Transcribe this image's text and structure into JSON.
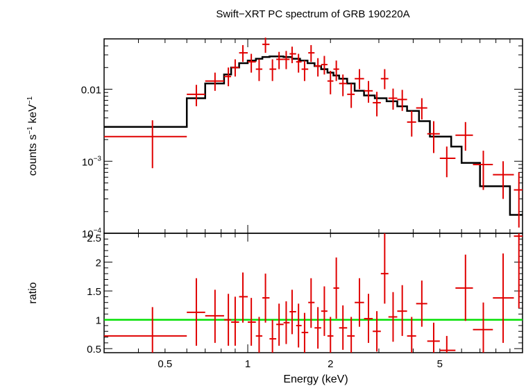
{
  "chart_data": {
    "type": "line",
    "title": "Swift−XRT PC spectrum of GRB 190220A",
    "xlabel": "Energy (keV)",
    "x_scale": "log",
    "xlim": [
      0.3,
      10
    ],
    "x_ticks": [
      {
        "value": 0.5,
        "label": "0.5"
      },
      {
        "value": 1,
        "label": "1"
      },
      {
        "value": 2,
        "label": "2"
      },
      {
        "value": 5,
        "label": "5"
      }
    ],
    "colors": {
      "data": "#e00000",
      "model": "#000000",
      "unity": "#00e000"
    },
    "top_panel": {
      "ylabel_parts": {
        "a": "counts s",
        "b": "−1",
        "c": " keV",
        "d": "−1"
      },
      "y_scale": "log",
      "ylim": [
        0.0001,
        0.05
      ],
      "y_ticks": [
        {
          "value": 0.01,
          "label": "0.01"
        },
        {
          "value": 0.001,
          "base": "10",
          "exp": "−3"
        },
        {
          "value": 0.0001,
          "base": "10",
          "exp": "−4"
        }
      ],
      "model_steps": [
        [
          0.3,
          0.6,
          0.003
        ],
        [
          0.6,
          0.7,
          0.0075
        ],
        [
          0.7,
          0.82,
          0.012
        ],
        [
          0.82,
          0.87,
          0.016
        ],
        [
          0.87,
          0.93,
          0.02
        ],
        [
          0.93,
          1.0,
          0.023
        ],
        [
          1.0,
          1.07,
          0.025
        ],
        [
          1.07,
          1.13,
          0.0265
        ],
        [
          1.13,
          1.2,
          0.028
        ],
        [
          1.2,
          1.35,
          0.0285
        ],
        [
          1.35,
          1.45,
          0.028
        ],
        [
          1.45,
          1.55,
          0.0265
        ],
        [
          1.55,
          1.65,
          0.025
        ],
        [
          1.65,
          1.75,
          0.023
        ],
        [
          1.75,
          1.85,
          0.021
        ],
        [
          1.85,
          1.95,
          0.019
        ],
        [
          1.95,
          2.05,
          0.017
        ],
        [
          2.05,
          2.15,
          0.0155
        ],
        [
          2.15,
          2.3,
          0.014
        ],
        [
          2.3,
          2.45,
          0.012
        ],
        [
          2.45,
          2.65,
          0.0095
        ],
        [
          2.65,
          2.9,
          0.0082
        ],
        [
          2.9,
          3.2,
          0.0075
        ],
        [
          3.2,
          3.5,
          0.0068
        ],
        [
          3.5,
          3.8,
          0.0058
        ],
        [
          3.8,
          4.2,
          0.005
        ],
        [
          4.2,
          4.6,
          0.0036
        ],
        [
          4.6,
          5.5,
          0.0022
        ],
        [
          5.5,
          6.0,
          0.0016
        ],
        [
          6.0,
          7.0,
          0.00095
        ],
        [
          7.0,
          8.0,
          0.00045
        ],
        [
          8.0,
          9.0,
          0.00045
        ],
        [
          9.0,
          9.5,
          0.00018
        ],
        [
          9.5,
          10.0,
          0.00018
        ]
      ],
      "points": [
        [
          0.45,
          0.3,
          0.6,
          0.0022,
          0.0008,
          0.0037
        ],
        [
          0.65,
          0.6,
          0.7,
          0.0085,
          0.0058,
          0.0115
        ],
        [
          0.76,
          0.7,
          0.82,
          0.013,
          0.0095,
          0.017
        ],
        [
          0.85,
          0.82,
          0.87,
          0.015,
          0.011,
          0.02
        ],
        [
          0.9,
          0.87,
          0.93,
          0.02,
          0.015,
          0.026
        ],
        [
          0.96,
          0.93,
          1.0,
          0.032,
          0.024,
          0.041
        ],
        [
          1.03,
          1.0,
          1.07,
          0.024,
          0.017,
          0.031
        ],
        [
          1.1,
          1.07,
          1.13,
          0.019,
          0.013,
          0.026
        ],
        [
          1.16,
          1.13,
          1.2,
          0.042,
          0.032,
          0.052
        ],
        [
          1.23,
          1.2,
          1.27,
          0.019,
          0.013,
          0.026
        ],
        [
          1.3,
          1.27,
          1.35,
          0.026,
          0.019,
          0.033
        ],
        [
          1.38,
          1.35,
          1.42,
          0.026,
          0.019,
          0.034
        ],
        [
          1.45,
          1.42,
          1.5,
          0.031,
          0.023,
          0.039
        ],
        [
          1.53,
          1.5,
          1.57,
          0.024,
          0.017,
          0.031
        ],
        [
          1.61,
          1.57,
          1.66,
          0.019,
          0.013,
          0.025
        ],
        [
          1.7,
          1.66,
          1.75,
          0.032,
          0.024,
          0.041
        ],
        [
          1.8,
          1.75,
          1.85,
          0.021,
          0.015,
          0.027
        ],
        [
          1.9,
          1.85,
          1.95,
          0.022,
          0.016,
          0.029
        ],
        [
          2.0,
          1.95,
          2.05,
          0.013,
          0.0085,
          0.018
        ],
        [
          2.1,
          2.05,
          2.15,
          0.019,
          0.013,
          0.025
        ],
        [
          2.22,
          2.15,
          2.3,
          0.012,
          0.008,
          0.016
        ],
        [
          2.38,
          2.3,
          2.45,
          0.0085,
          0.0055,
          0.012
        ],
        [
          2.55,
          2.45,
          2.65,
          0.014,
          0.01,
          0.019
        ],
        [
          2.75,
          2.65,
          2.85,
          0.0095,
          0.0065,
          0.013
        ],
        [
          2.95,
          2.85,
          3.05,
          0.0065,
          0.0042,
          0.0092
        ],
        [
          3.15,
          3.05,
          3.25,
          0.014,
          0.01,
          0.019
        ],
        [
          3.38,
          3.25,
          3.5,
          0.0075,
          0.0052,
          0.0102
        ],
        [
          3.65,
          3.5,
          3.8,
          0.0072,
          0.005,
          0.0098
        ],
        [
          3.95,
          3.8,
          4.1,
          0.0035,
          0.0022,
          0.005
        ],
        [
          4.3,
          4.1,
          4.5,
          0.0055,
          0.0038,
          0.0075
        ],
        [
          4.75,
          4.5,
          5.0,
          0.0024,
          0.0013,
          0.0036
        ],
        [
          5.3,
          5.0,
          5.7,
          0.0011,
          0.0006,
          0.0016
        ],
        [
          6.2,
          5.7,
          6.6,
          0.0023,
          0.0014,
          0.0035
        ],
        [
          7.2,
          6.6,
          7.8,
          0.0009,
          0.0004,
          0.0014
        ],
        [
          8.5,
          7.8,
          9.3,
          0.00065,
          0.0003,
          0.001
        ],
        [
          9.7,
          9.3,
          10.0,
          0.0004,
          0.00012,
          0.0007
        ]
      ]
    },
    "bottom_panel": {
      "ylabel": "ratio",
      "ylim": [
        0.43,
        2.5
      ],
      "y_ticks": [
        {
          "value": 0.5,
          "label": "0.5"
        },
        {
          "value": 1,
          "label": "1"
        },
        {
          "value": 1.5,
          "label": "1.5"
        },
        {
          "value": 2,
          "label": "2"
        },
        {
          "value": 2.5,
          "label": "2.5"
        }
      ],
      "reference_line": 1,
      "points": [
        [
          0.45,
          0.3,
          0.6,
          0.72,
          0.25,
          1.22
        ],
        [
          0.65,
          0.6,
          0.7,
          1.13,
          0.55,
          1.72
        ],
        [
          0.76,
          0.7,
          0.82,
          1.07,
          0.6,
          1.52
        ],
        [
          0.85,
          0.82,
          0.87,
          1.0,
          0.55,
          1.45
        ],
        [
          0.9,
          0.87,
          0.93,
          0.96,
          0.55,
          1.4
        ],
        [
          0.96,
          0.93,
          1.0,
          1.4,
          0.95,
          1.82
        ],
        [
          1.03,
          1.0,
          1.07,
          0.96,
          0.55,
          1.38
        ],
        [
          1.1,
          1.07,
          1.13,
          0.72,
          0.38,
          1.05
        ],
        [
          1.16,
          1.13,
          1.2,
          1.38,
          0.95,
          1.8
        ],
        [
          1.23,
          1.2,
          1.27,
          0.67,
          0.35,
          1.0
        ],
        [
          1.3,
          1.27,
          1.35,
          0.92,
          0.55,
          1.28
        ],
        [
          1.38,
          1.35,
          1.42,
          0.95,
          0.58,
          1.32
        ],
        [
          1.45,
          1.42,
          1.5,
          1.14,
          0.75,
          1.52
        ],
        [
          1.53,
          1.5,
          1.57,
          0.9,
          0.52,
          1.28
        ],
        [
          1.61,
          1.57,
          1.66,
          0.78,
          0.42,
          1.12
        ],
        [
          1.7,
          1.66,
          1.75,
          1.3,
          0.86,
          1.72
        ],
        [
          1.8,
          1.75,
          1.85,
          0.86,
          0.5,
          1.22
        ],
        [
          1.9,
          1.85,
          1.95,
          1.15,
          0.72,
          1.58
        ],
        [
          2.0,
          1.95,
          2.05,
          0.72,
          0.38,
          1.05
        ],
        [
          2.1,
          2.05,
          2.15,
          1.55,
          1.02,
          2.08
        ],
        [
          2.22,
          2.15,
          2.3,
          0.86,
          0.48,
          1.25
        ],
        [
          2.38,
          2.3,
          2.45,
          0.72,
          0.38,
          1.05
        ],
        [
          2.55,
          2.45,
          2.65,
          1.3,
          0.88,
          1.72
        ],
        [
          2.75,
          2.65,
          2.85,
          1.02,
          0.6,
          1.45
        ],
        [
          2.95,
          2.85,
          3.05,
          0.8,
          0.45,
          1.15
        ],
        [
          3.15,
          3.05,
          3.25,
          1.8,
          1.28,
          2.5
        ],
        [
          3.38,
          3.25,
          3.5,
          1.05,
          0.62,
          1.48
        ],
        [
          3.65,
          3.5,
          3.8,
          1.15,
          0.72,
          1.6
        ],
        [
          3.95,
          3.8,
          4.1,
          0.72,
          0.38,
          1.05
        ],
        [
          4.3,
          4.1,
          4.5,
          1.28,
          0.88,
          1.68
        ],
        [
          4.75,
          4.5,
          5.0,
          0.63,
          0.3,
          0.95
        ],
        [
          5.3,
          5.0,
          5.7,
          0.47,
          0.3,
          0.72
        ],
        [
          6.2,
          5.7,
          6.6,
          1.55,
          0.98,
          2.13
        ],
        [
          7.2,
          6.6,
          7.8,
          0.83,
          0.4,
          1.3
        ],
        [
          8.5,
          7.8,
          9.3,
          1.38,
          0.6,
          2.15
        ],
        [
          9.7,
          9.3,
          10.0,
          2.45,
          1.2,
          2.5
        ]
      ]
    }
  }
}
